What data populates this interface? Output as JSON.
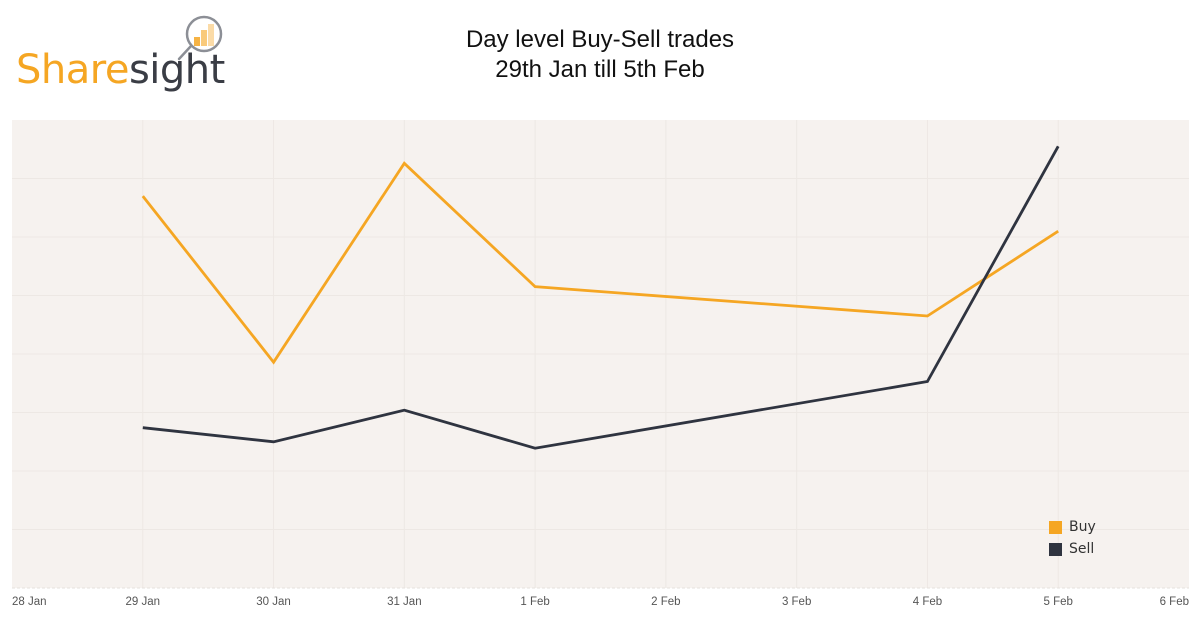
{
  "logo": {
    "text_part1": "Share",
    "text_part2": "sight",
    "icon": "magnifier-bar-chart-icon",
    "colors": {
      "orange": "#f5a623",
      "dark": "#3a3d45"
    }
  },
  "title": {
    "line1": "Day level Buy-Sell trades",
    "line2": "29th Jan till 5th Feb"
  },
  "colors": {
    "plot_background": "#f6f2ef",
    "gridline": "#ede8e4",
    "buy": "#f5a623",
    "sell": "#2f3440"
  },
  "legend": [
    {
      "label": "Buy",
      "color": "#f5a623"
    },
    {
      "label": "Sell",
      "color": "#2f3440"
    }
  ],
  "x_ticks": [
    "28 Jan",
    "29 Jan",
    "30 Jan",
    "31 Jan",
    "1 Feb",
    "2 Feb",
    "3 Feb",
    "4 Feb",
    "5 Feb",
    "6 Feb"
  ],
  "chart_data": {
    "type": "line",
    "title": "Day level Buy-Sell trades 29th Jan till 5th Feb",
    "xlabel": "",
    "ylabel": "",
    "x": [
      "28 Jan",
      "29 Jan",
      "30 Jan",
      "31 Jan",
      "1 Feb",
      "2 Feb",
      "3 Feb",
      "4 Feb",
      "5 Feb",
      "6 Feb"
    ],
    "series": [
      {
        "name": "Buy",
        "color": "#f5a623",
        "points": [
          {
            "x": "29 Jan",
            "y": 6.7
          },
          {
            "x": "30 Jan",
            "y": 3.86
          },
          {
            "x": "31 Jan",
            "y": 7.26
          },
          {
            "x": "1 Feb",
            "y": 5.15
          },
          {
            "x": "4 Feb",
            "y": 4.65
          },
          {
            "x": "5 Feb",
            "y": 6.1
          }
        ]
      },
      {
        "name": "Sell",
        "color": "#2f3440",
        "points": [
          {
            "x": "29 Jan",
            "y": 2.74
          },
          {
            "x": "30 Jan",
            "y": 2.5
          },
          {
            "x": "31 Jan",
            "y": 3.04
          },
          {
            "x": "1 Feb",
            "y": 2.39
          },
          {
            "x": "4 Feb",
            "y": 3.53
          },
          {
            "x": "5 Feb",
            "y": 7.55
          }
        ]
      }
    ],
    "ylim": [
      0,
      8
    ],
    "y_axis_labels_visible": false,
    "grid": true,
    "legend_position": "bottom-right inside plot"
  }
}
